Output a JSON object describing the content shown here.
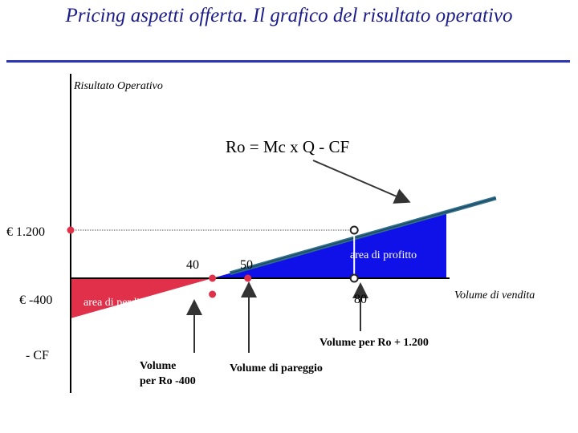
{
  "title": "Pricing aspetti offerta. Il grafico del risultato operativo",
  "chart_data": {
    "type": "line",
    "ylabel": "Risultato Operativo",
    "xlabel": "Volume di vendita",
    "formula": "Ro  =  Mc x Q  - CF",
    "line": {
      "x": [
        0,
        120
      ],
      "y": [
        -1000,
        2000
      ]
    },
    "y_ticks": [
      {
        "label": "€ 1.200",
        "value": 1200
      },
      {
        "label": "€ -400",
        "value": -400
      },
      {
        "label": "- CF",
        "value": -1000
      }
    ],
    "x_ticks": [
      {
        "label": "40",
        "value": 40
      },
      {
        "label": "50",
        "value": 50
      },
      {
        "label": "80",
        "value": 80
      }
    ],
    "points": [
      {
        "x": 0,
        "y": 1200
      },
      {
        "x": 40,
        "y": 0
      },
      {
        "x": 40,
        "y": -400
      },
      {
        "x": 50,
        "y": 0
      },
      {
        "x": 80,
        "y": 1200
      },
      {
        "x": 80,
        "y": 0
      }
    ],
    "areas": [
      {
        "label": "area di perdita",
        "color": "#e0304a"
      },
      {
        "label": "area di profitto",
        "color": "#1010e8"
      }
    ],
    "annotations": {
      "vol_400": [
        "Volume",
        "per Ro -400"
      ],
      "pareggio": "Volume di pareggio",
      "vol_1200": "Volume per Ro + 1.200"
    }
  }
}
